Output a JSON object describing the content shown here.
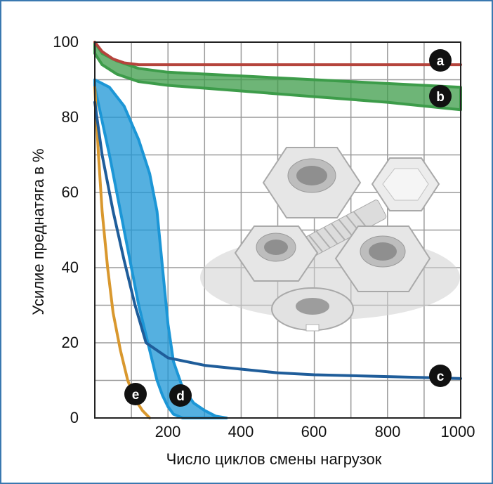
{
  "chart_data": {
    "type": "line",
    "xlabel": "Число циклов смены нагрузок",
    "ylabel": "Усилие преднатяга в %",
    "xlim": [
      0,
      1000
    ],
    "ylim": [
      0,
      100
    ],
    "x_ticks": [
      "200",
      "400",
      "600",
      "800",
      "1000"
    ],
    "y_ticks": [
      "0",
      "20",
      "40",
      "60",
      "80",
      "100"
    ],
    "grid": true,
    "series": [
      {
        "name": "a",
        "kind": "line",
        "color": "#b5443c",
        "x": [
          0,
          20,
          50,
          80,
          120,
          200,
          400,
          600,
          800,
          1000
        ],
        "y": [
          100,
          97.5,
          95.5,
          94.5,
          94,
          94,
          94,
          94,
          94,
          94
        ]
      },
      {
        "name": "b",
        "kind": "band",
        "color": "#3d9c4a",
        "x": [
          0,
          20,
          60,
          120,
          200,
          400,
          600,
          800,
          1000
        ],
        "upper": [
          100,
          97,
          95,
          93,
          92,
          91,
          90,
          89,
          88
        ],
        "lower": [
          97,
          94,
          91.5,
          89.5,
          88.5,
          87,
          85.5,
          84,
          82
        ]
      },
      {
        "name": "c",
        "kind": "line",
        "color": "#1f5d9a",
        "x": [
          0,
          20,
          50,
          80,
          110,
          140,
          200,
          300,
          400,
          500,
          600,
          800,
          1000
        ],
        "y": [
          84,
          70,
          55,
          42,
          30,
          20,
          16,
          14,
          13,
          12,
          11.5,
          11,
          10.5
        ]
      },
      {
        "name": "d",
        "kind": "band",
        "color": "#1c96d6",
        "x": [
          0,
          40,
          80,
          120,
          150,
          170,
          185,
          200,
          215,
          240,
          270,
          300,
          330,
          360
        ],
        "upper": [
          90,
          88,
          83,
          74,
          65,
          55,
          40,
          25,
          15,
          8,
          4,
          2,
          0.5,
          0
        ],
        "lower": [
          88,
          70,
          50,
          30,
          18,
          10,
          6,
          3,
          1,
          0,
          0,
          0,
          0,
          0
        ]
      },
      {
        "name": "e",
        "kind": "line",
        "color": "#d9982e",
        "x": [
          0,
          10,
          20,
          35,
          50,
          70,
          90,
          110,
          130,
          150
        ],
        "y": [
          88,
          70,
          55,
          40,
          28,
          18,
          10,
          5,
          2,
          0
        ]
      }
    ]
  }
}
